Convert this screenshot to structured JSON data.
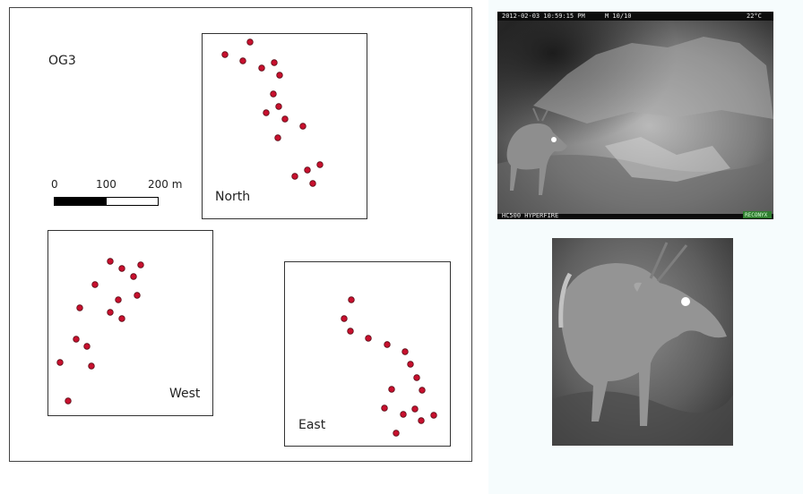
{
  "site_label": "OG3",
  "scale_bar": {
    "tick_0": "0",
    "tick_100": "100",
    "tick_200": "200 m"
  },
  "areas": [
    {
      "key": "north",
      "label": "North"
    },
    {
      "key": "west",
      "label": "West"
    },
    {
      "key": "east",
      "label": "East"
    }
  ],
  "camera_photo": {
    "timestamp": "2012-02-03 10:59:15 PM",
    "frame_counter": "M 10/10",
    "temperature": "22°C",
    "camera_model": "HC500 HYPERFIRE",
    "brand_badge": "RECONYX"
  },
  "colors": {
    "point_fill": "#c8102e",
    "point_stroke": "#5a0a14"
  }
}
